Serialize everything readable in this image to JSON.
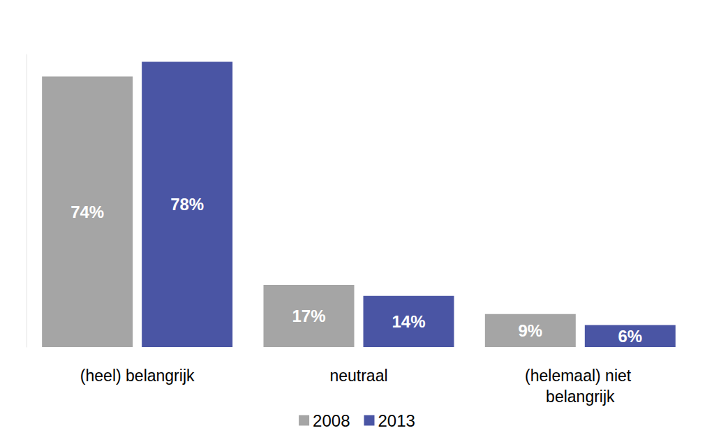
{
  "chart_data": {
    "type": "bar",
    "categories": [
      "(heel) belangrijk",
      "neutraal",
      "(helemaal) niet belangrijk"
    ],
    "series": [
      {
        "name": "2008",
        "color": "#a5a5a5",
        "values": [
          74,
          17,
          9
        ],
        "value_labels": [
          "74%",
          "17%",
          "9%"
        ]
      },
      {
        "name": "2013",
        "color": "#4a55a4",
        "values": [
          78,
          14,
          6
        ],
        "value_labels": [
          "78%",
          "14%",
          "6%"
        ]
      }
    ],
    "ylim": [
      0,
      80
    ],
    "grid": false,
    "legend": "bottom",
    "data_labels": true,
    "tick_labels": "x"
  }
}
